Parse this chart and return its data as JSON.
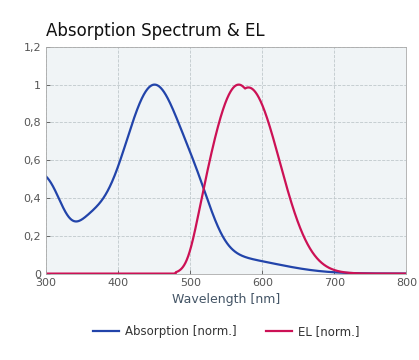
{
  "title": "Absorption Spectrum & EL",
  "xlabel": "Wavelength [nm]",
  "ylabel_ticks": [
    "0",
    "0,2",
    "0,4",
    "0,6",
    "0,8",
    "1",
    "1,2"
  ],
  "ytick_vals": [
    0,
    0.2,
    0.4,
    0.6,
    0.8,
    1.0,
    1.2
  ],
  "xlim": [
    300,
    800
  ],
  "ylim": [
    0,
    1.2
  ],
  "xticks": [
    300,
    400,
    500,
    600,
    700,
    800
  ],
  "absorption_color": "#2244aa",
  "el_color": "#cc1155",
  "legend_absorption": "Absorption [norm.]",
  "legend_el": "EL [norm.]",
  "grid_color": "#c0c8cc",
  "background_color": "#f0f4f6",
  "title_fontsize": 12,
  "axis_label_fontsize": 9,
  "tick_fontsize": 8,
  "legend_fontsize": 8.5,
  "line_width": 1.6
}
